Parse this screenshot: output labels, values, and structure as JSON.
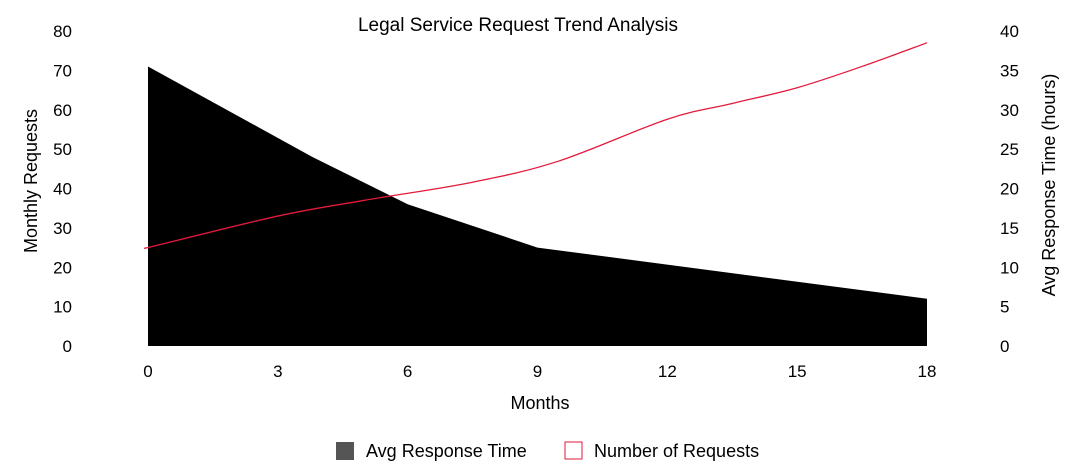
{
  "chart_data": {
    "type": "area",
    "title": "Legal Service Request Trend Analysis",
    "xlabel": "Months",
    "ylabel_left": "Monthly Requests",
    "ylabel_right": "Avg Response Time (hours)",
    "x_ticks": [
      0,
      3,
      6,
      9,
      12,
      15,
      18
    ],
    "xlim": [
      0,
      18
    ],
    "y_left_ticks": [
      0,
      10,
      20,
      30,
      40,
      50,
      60,
      70,
      80
    ],
    "ylim_left": [
      0,
      80
    ],
    "y_right_ticks": [
      0,
      5,
      10,
      15,
      20,
      25,
      30,
      35,
      40
    ],
    "ylim_right": [
      0,
      40
    ],
    "grid": false,
    "legend_placement": "bottom-center",
    "series": [
      {
        "name": "Avg Response Time",
        "type": "area",
        "axis": "left",
        "color": "#000000",
        "legend_color": "#555555",
        "x": [
          0,
          3.8,
          6,
          9,
          18
        ],
        "values": [
          71,
          48,
          36,
          25,
          12
        ]
      },
      {
        "name": "Number of Requests",
        "type": "line",
        "axis": "right",
        "color": "#e31a3c",
        "x": [
          0,
          3,
          5,
          7.5,
          9.5,
          12,
          13.5,
          15,
          16.5,
          18
        ],
        "values": [
          12.5,
          16.5,
          18.5,
          20.8,
          23.5,
          28.8,
          30.8,
          32.8,
          35.5,
          38.5
        ]
      }
    ]
  }
}
